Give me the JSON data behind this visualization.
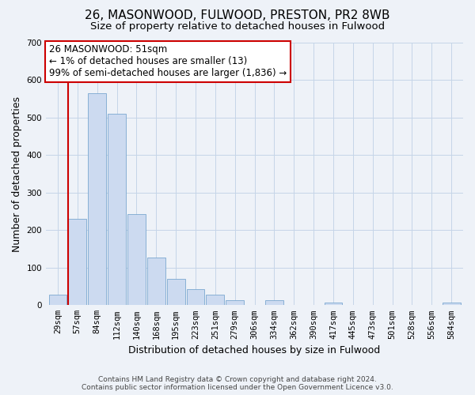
{
  "title": "26, MASONWOOD, FULWOOD, PRESTON, PR2 8WB",
  "subtitle": "Size of property relative to detached houses in Fulwood",
  "xlabel": "Distribution of detached houses by size in Fulwood",
  "ylabel": "Number of detached properties",
  "bar_labels": [
    "29sqm",
    "57sqm",
    "84sqm",
    "112sqm",
    "140sqm",
    "168sqm",
    "195sqm",
    "223sqm",
    "251sqm",
    "279sqm",
    "306sqm",
    "334sqm",
    "362sqm",
    "390sqm",
    "417sqm",
    "445sqm",
    "473sqm",
    "501sqm",
    "528sqm",
    "556sqm",
    "584sqm"
  ],
  "bar_values": [
    28,
    230,
    565,
    510,
    242,
    126,
    70,
    42,
    27,
    13,
    0,
    13,
    0,
    0,
    7,
    0,
    0,
    0,
    0,
    0,
    7
  ],
  "bar_color": "#ccdaf0",
  "bar_edge_color": "#7aa8d0",
  "annotation_box_text": "26 MASONWOOD: 51sqm\n← 1% of detached houses are smaller (13)\n99% of semi-detached houses are larger (1,836) →",
  "annotation_box_color": "#ffffff",
  "annotation_box_edge_color": "#cc0000",
  "vline_color": "#cc0000",
  "ylim": [
    0,
    700
  ],
  "yticks": [
    0,
    100,
    200,
    300,
    400,
    500,
    600,
    700
  ],
  "background_color": "#eef2f8",
  "footer_line1": "Contains HM Land Registry data © Crown copyright and database right 2024.",
  "footer_line2": "Contains public sector information licensed under the Open Government Licence v3.0.",
  "title_fontsize": 11,
  "subtitle_fontsize": 9.5,
  "axis_label_fontsize": 9,
  "tick_fontsize": 7.5,
  "annotation_fontsize": 8.5,
  "footer_fontsize": 6.5
}
